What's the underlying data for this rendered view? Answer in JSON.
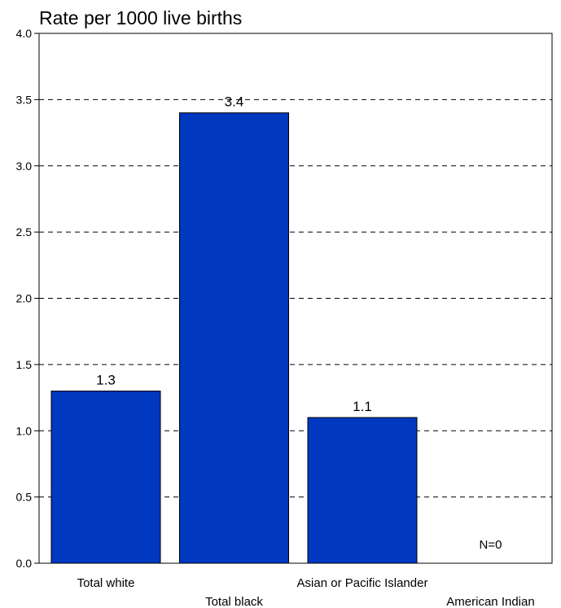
{
  "chart_data": {
    "type": "bar",
    "title": "Rate per 1000 live births",
    "xlabel": "",
    "ylabel": "",
    "categories": [
      "Total white",
      "Total black",
      "Asian or Pacific Islander",
      "American Indian"
    ],
    "values": [
      1.3,
      3.4,
      1.1,
      null
    ],
    "data_labels": [
      "1.3",
      "3.4",
      "1.1",
      "N=0"
    ],
    "ylim": [
      0,
      4.0
    ],
    "yticks": [
      "0.0",
      "0.5",
      "1.0",
      "1.5",
      "2.0",
      "2.5",
      "3.0",
      "3.5",
      "4.0"
    ],
    "grid": true,
    "grid_style": "dashed",
    "bar_color": "#0038c0",
    "bar_edge_color": "#000000",
    "legend": "none"
  }
}
